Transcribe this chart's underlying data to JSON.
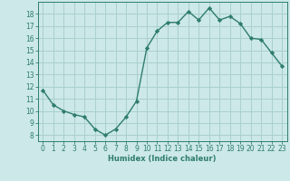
{
  "x": [
    0,
    1,
    2,
    3,
    4,
    5,
    6,
    7,
    8,
    9,
    10,
    11,
    12,
    13,
    14,
    15,
    16,
    17,
    18,
    19,
    20,
    21,
    22,
    23
  ],
  "y": [
    11.7,
    10.5,
    10.0,
    9.7,
    9.5,
    8.5,
    8.0,
    8.5,
    9.5,
    10.8,
    15.2,
    16.6,
    17.3,
    17.3,
    18.2,
    17.5,
    18.5,
    17.5,
    17.8,
    17.2,
    16.0,
    15.9,
    14.8,
    13.7
  ],
  "line_color": "#2e7d6e",
  "marker": "D",
  "marker_size": 2.2,
  "bg_color": "#cce8e8",
  "grid_color": "#aacfcf",
  "tick_color": "#2e7d6e",
  "label_color": "#2e7d6e",
  "xlabel": "Humidex (Indice chaleur)",
  "ylim": [
    7.5,
    19.0
  ],
  "xlim": [
    -0.5,
    23.5
  ],
  "yticks": [
    8,
    9,
    10,
    11,
    12,
    13,
    14,
    15,
    16,
    17,
    18
  ],
  "xticks": [
    0,
    1,
    2,
    3,
    4,
    5,
    6,
    7,
    8,
    9,
    10,
    11,
    12,
    13,
    14,
    15,
    16,
    17,
    18,
    19,
    20,
    21,
    22,
    23
  ],
  "tick_fontsize": 5.5,
  "xlabel_fontsize": 6.0
}
